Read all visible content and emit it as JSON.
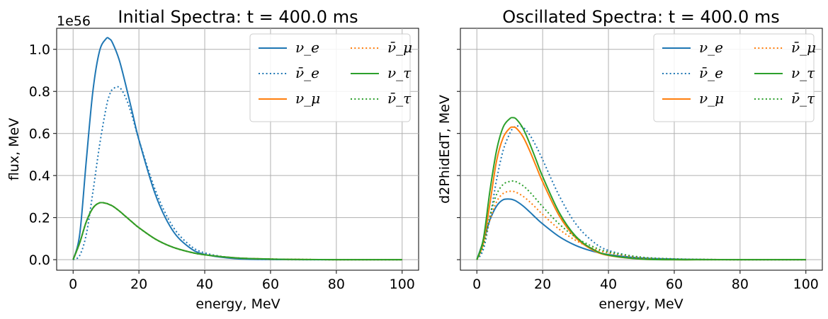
{
  "chart_data": [
    {
      "type": "line",
      "title": "Initial Spectra: t = 400.0 ms",
      "xlabel": "energy, MeV",
      "ylabel": "flux, MeV",
      "y_multiplier": "1e56",
      "xlim": [
        -5,
        105
      ],
      "ylim": [
        -0.05,
        1.1
      ],
      "xticks": [
        "0",
        "20",
        "40",
        "60",
        "80",
        "100"
      ],
      "yticks": [
        "0.0",
        "0.2",
        "0.4",
        "0.6",
        "0.8",
        "1.0"
      ],
      "grid": true,
      "legend_position": "top-right",
      "x": [
        0,
        2,
        4,
        6,
        8,
        10,
        11,
        12,
        14,
        16,
        18,
        20,
        25,
        30,
        35,
        40,
        50,
        60,
        70,
        80,
        90,
        100
      ],
      "series": [
        {
          "name": "ν_e",
          "color": "#1f77b4",
          "style": "solid",
          "values": [
            0,
            0.12,
            0.47,
            0.8,
            0.99,
            1.05,
            1.05,
            1.03,
            0.95,
            0.83,
            0.7,
            0.57,
            0.31,
            0.145,
            0.062,
            0.025,
            0.004,
            0.001,
            0,
            0,
            0,
            0
          ]
        },
        {
          "name": "ν̄_e",
          "color": "#1f77b4",
          "style": "dotted",
          "values": [
            0,
            0.02,
            0.12,
            0.32,
            0.54,
            0.72,
            0.78,
            0.81,
            0.82,
            0.77,
            0.68,
            0.57,
            0.33,
            0.165,
            0.075,
            0.032,
            0.006,
            0.001,
            0,
            0,
            0,
            0
          ]
        },
        {
          "name": "ν_μ",
          "color": "#ff7f0e",
          "style": "solid",
          "values": [
            0,
            0.08,
            0.18,
            0.245,
            0.27,
            0.268,
            0.262,
            0.255,
            0.232,
            0.205,
            0.178,
            0.152,
            0.098,
            0.061,
            0.038,
            0.023,
            0.008,
            0.003,
            0.001,
            0,
            0,
            0
          ]
        },
        {
          "name": "ν̄_μ",
          "color": "#ff7f0e",
          "style": "dotted",
          "values": [
            0,
            0.08,
            0.18,
            0.245,
            0.27,
            0.268,
            0.262,
            0.255,
            0.232,
            0.205,
            0.178,
            0.152,
            0.098,
            0.061,
            0.038,
            0.023,
            0.008,
            0.003,
            0.001,
            0,
            0,
            0
          ]
        },
        {
          "name": "ν_τ",
          "color": "#2ca02c",
          "style": "solid",
          "values": [
            0,
            0.08,
            0.18,
            0.245,
            0.27,
            0.268,
            0.262,
            0.255,
            0.232,
            0.205,
            0.178,
            0.152,
            0.098,
            0.061,
            0.038,
            0.023,
            0.008,
            0.003,
            0.001,
            0,
            0,
            0
          ]
        },
        {
          "name": "ν̄_τ",
          "color": "#2ca02c",
          "style": "dotted",
          "values": [
            0,
            0.08,
            0.18,
            0.245,
            0.27,
            0.268,
            0.262,
            0.255,
            0.232,
            0.205,
            0.178,
            0.152,
            0.098,
            0.061,
            0.038,
            0.023,
            0.008,
            0.003,
            0.001,
            0,
            0,
            0
          ]
        }
      ]
    },
    {
      "type": "line",
      "title": "Oscillated Spectra: t = 400.0 ms",
      "xlabel": "energy, MeV",
      "ylabel": "d2PhidEdT, MeV",
      "xlim": [
        -5,
        105
      ],
      "ylim": [
        -0.05,
        1.1
      ],
      "xticks": [
        "0",
        "20",
        "40",
        "60",
        "80",
        "100"
      ],
      "grid": true,
      "legend_position": "top-right",
      "x": [
        0,
        2,
        4,
        6,
        8,
        10,
        11,
        12,
        14,
        16,
        18,
        20,
        25,
        30,
        35,
        40,
        50,
        60,
        70,
        80,
        90,
        100
      ],
      "series": [
        {
          "name": "ν_e",
          "color": "#1f77b4",
          "style": "solid",
          "values": [
            0,
            0.09,
            0.19,
            0.255,
            0.285,
            0.288,
            0.285,
            0.278,
            0.256,
            0.228,
            0.198,
            0.17,
            0.11,
            0.068,
            0.041,
            0.024,
            0.008,
            0.003,
            0.001,
            0,
            0,
            0
          ]
        },
        {
          "name": "ν̄_e",
          "color": "#1f77b4",
          "style": "dotted",
          "values": [
            0,
            0.05,
            0.2,
            0.38,
            0.52,
            0.6,
            0.625,
            0.635,
            0.63,
            0.595,
            0.54,
            0.475,
            0.305,
            0.172,
            0.09,
            0.044,
            0.01,
            0.002,
            0,
            0,
            0,
            0
          ]
        },
        {
          "name": "ν_μ",
          "color": "#ff7f0e",
          "style": "solid",
          "values": [
            0,
            0.08,
            0.27,
            0.47,
            0.58,
            0.625,
            0.63,
            0.625,
            0.585,
            0.52,
            0.445,
            0.37,
            0.21,
            0.105,
            0.048,
            0.02,
            0.003,
            0,
            0,
            0,
            0,
            0
          ]
        },
        {
          "name": "ν̄_μ",
          "color": "#ff7f0e",
          "style": "dotted",
          "values": [
            0,
            0.07,
            0.19,
            0.275,
            0.315,
            0.325,
            0.325,
            0.32,
            0.302,
            0.276,
            0.246,
            0.215,
            0.145,
            0.092,
            0.055,
            0.032,
            0.01,
            0.003,
            0.001,
            0,
            0,
            0
          ]
        },
        {
          "name": "ν_τ",
          "color": "#2ca02c",
          "style": "solid",
          "values": [
            0,
            0.1,
            0.33,
            0.52,
            0.63,
            0.67,
            0.675,
            0.668,
            0.625,
            0.555,
            0.475,
            0.395,
            0.225,
            0.112,
            0.052,
            0.022,
            0.003,
            0,
            0,
            0,
            0,
            0
          ]
        },
        {
          "name": "ν̄_τ",
          "color": "#2ca02c",
          "style": "dotted",
          "values": [
            0,
            0.07,
            0.21,
            0.31,
            0.358,
            0.372,
            0.374,
            0.37,
            0.352,
            0.323,
            0.288,
            0.252,
            0.17,
            0.107,
            0.064,
            0.037,
            0.012,
            0.004,
            0.001,
            0,
            0,
            0
          ]
        }
      ]
    }
  ]
}
